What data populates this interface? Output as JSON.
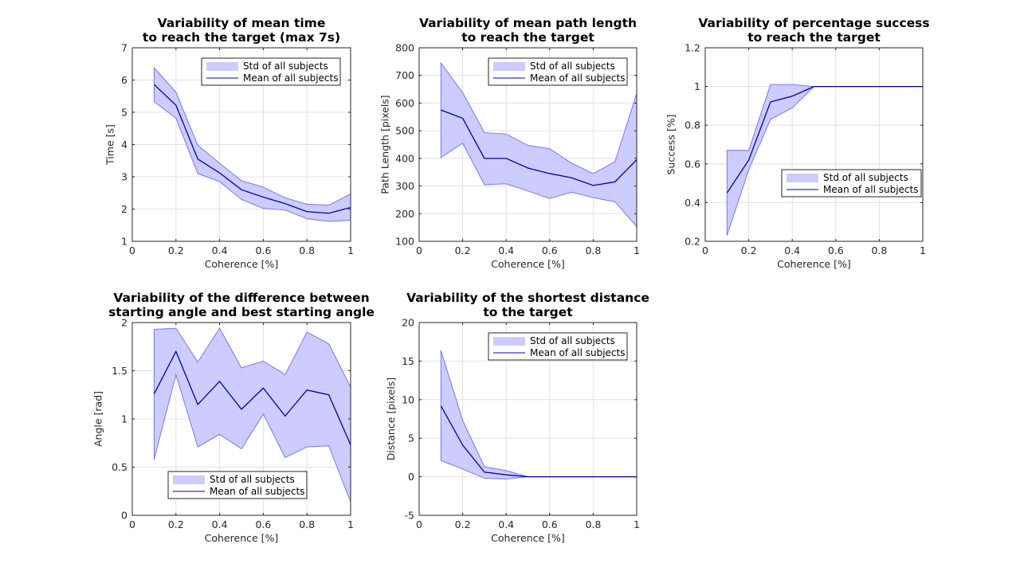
{
  "figure": {
    "background": "#ffffff",
    "band_color": "#ccccff",
    "band_edge_color": "#7777ee",
    "mean_color": "#0000aa",
    "grid_color": "#e0e0e0"
  },
  "chart_data": [
    {
      "type": "area",
      "title": [
        "Variability of mean time",
        "to reach the target (max 7s)"
      ],
      "xlabel": "Coherence [%]",
      "ylabel": "Time [s]",
      "xlim": [
        0,
        1
      ],
      "ylim": [
        1,
        7
      ],
      "xticks": [
        0,
        0.2,
        0.4,
        0.6,
        0.8,
        1
      ],
      "xtick_labels": [
        "0",
        "0.2",
        "0.4",
        "0.6",
        "0.8",
        "1"
      ],
      "yticks": [
        1,
        2,
        3,
        4,
        5,
        6,
        7
      ],
      "ytick_labels": [
        "1",
        "2",
        "3",
        "4",
        "5",
        "6",
        "7"
      ],
      "grid": true,
      "legend": {
        "position": "top-right",
        "entries": [
          "Std of all subjects",
          "Mean of all subjects"
        ]
      },
      "x": [
        0.1,
        0.2,
        0.3,
        0.4,
        0.5,
        0.6,
        0.7,
        0.8,
        0.9,
        1.0
      ],
      "series": [
        {
          "name": "Mean of all subjects",
          "values": [
            5.86,
            5.22,
            3.55,
            3.12,
            2.6,
            2.37,
            2.17,
            1.92,
            1.87,
            2.05
          ]
        },
        {
          "name": "Std of all subjects",
          "upper": [
            6.38,
            5.62,
            3.98,
            3.42,
            2.88,
            2.68,
            2.35,
            2.15,
            2.12,
            2.47
          ],
          "lower": [
            5.33,
            4.82,
            3.1,
            2.85,
            2.3,
            2.02,
            1.97,
            1.7,
            1.62,
            1.65
          ]
        }
      ]
    },
    {
      "type": "area",
      "title": [
        "Variability of mean path length",
        "to reach the target"
      ],
      "xlabel": "Coherence [%]",
      "ylabel": "Path Length [pixels]",
      "xlim": [
        0,
        1
      ],
      "ylim": [
        100,
        800
      ],
      "xticks": [
        0,
        0.2,
        0.4,
        0.6,
        0.8,
        1
      ],
      "xtick_labels": [
        "0",
        "0.2",
        "0.4",
        "0.6",
        "0.8",
        "1"
      ],
      "yticks": [
        100,
        200,
        300,
        400,
        500,
        600,
        700,
        800
      ],
      "ytick_labels": [
        "100",
        "200",
        "300",
        "400",
        "500",
        "600",
        "700",
        "800"
      ],
      "grid": true,
      "legend": {
        "position": "top-right",
        "entries": [
          "Std of all subjects",
          "Mean of all subjects"
        ]
      },
      "x": [
        0.1,
        0.2,
        0.3,
        0.4,
        0.5,
        0.6,
        0.7,
        0.8,
        0.9,
        1.0
      ],
      "series": [
        {
          "name": "Mean of all subjects",
          "values": [
            575,
            545,
            400,
            400,
            365,
            345,
            330,
            302,
            315,
            395
          ]
        },
        {
          "name": "Std of all subjects",
          "upper": [
            745,
            638,
            493,
            488,
            447,
            435,
            383,
            345,
            388,
            635
          ],
          "lower": [
            403,
            455,
            305,
            308,
            282,
            255,
            278,
            258,
            243,
            153
          ]
        }
      ]
    },
    {
      "type": "area",
      "title": [
        "Variability of percentage success",
        "to reach the target"
      ],
      "xlabel": "Coherence [%]",
      "ylabel": "Success [%]",
      "xlim": [
        0,
        1
      ],
      "ylim": [
        0.2,
        1.2
      ],
      "xticks": [
        0,
        0.2,
        0.4,
        0.6,
        0.8,
        1
      ],
      "xtick_labels": [
        "0",
        "0.2",
        "0.4",
        "0.6",
        "0.8",
        "1"
      ],
      "yticks": [
        0.2,
        0.4,
        0.6,
        0.8,
        1,
        1.2
      ],
      "ytick_labels": [
        "0.2",
        "0.4",
        "0.6",
        "0.8",
        "1",
        "1.2"
      ],
      "grid": true,
      "legend": {
        "position": "bottom-right",
        "entries": [
          "Std of all subjects",
          "Mean of all subjects"
        ]
      },
      "x": [
        0.1,
        0.2,
        0.3,
        0.4,
        0.5,
        0.6,
        0.7,
        0.8,
        0.9,
        1.0
      ],
      "series": [
        {
          "name": "Mean of all subjects",
          "values": [
            0.45,
            0.62,
            0.92,
            0.95,
            1.0,
            1.0,
            1.0,
            1.0,
            1.0,
            1.0
          ]
        },
        {
          "name": "Std of all subjects",
          "upper": [
            0.67,
            0.67,
            1.01,
            1.01,
            1.0,
            1.0,
            1.0,
            1.0,
            1.0,
            1.0
          ],
          "lower": [
            0.23,
            0.57,
            0.83,
            0.89,
            1.0,
            1.0,
            1.0,
            1.0,
            1.0,
            1.0
          ]
        }
      ]
    },
    {
      "type": "area",
      "title": [
        "Variability of the difference between",
        "starting angle and best starting angle"
      ],
      "xlabel": "Coherence [%]",
      "ylabel": "Angle [rad]",
      "xlim": [
        0,
        1
      ],
      "ylim": [
        0,
        2
      ],
      "xticks": [
        0,
        0.2,
        0.4,
        0.6,
        0.8,
        1
      ],
      "xtick_labels": [
        "0",
        "0.2",
        "0.4",
        "0.6",
        "0.8",
        "1"
      ],
      "yticks": [
        0,
        0.5,
        1,
        1.5,
        2
      ],
      "ytick_labels": [
        "0",
        "0.5",
        "1",
        "1.5",
        "2"
      ],
      "grid": true,
      "legend": {
        "position": "bottom-center",
        "entries": [
          "Std of all subjects",
          "Mean of all subjects"
        ]
      },
      "x": [
        0.1,
        0.2,
        0.3,
        0.4,
        0.5,
        0.6,
        0.7,
        0.8,
        0.9,
        1.0
      ],
      "series": [
        {
          "name": "Mean of all subjects",
          "values": [
            1.26,
            1.7,
            1.15,
            1.39,
            1.1,
            1.32,
            1.03,
            1.3,
            1.25,
            0.73
          ]
        },
        {
          "name": "Std of all subjects",
          "upper": [
            1.93,
            1.94,
            1.59,
            1.94,
            1.53,
            1.6,
            1.46,
            1.9,
            1.78,
            1.33
          ],
          "lower": [
            0.58,
            1.46,
            0.71,
            0.84,
            0.69,
            1.05,
            0.6,
            0.71,
            0.72,
            0.14
          ]
        }
      ]
    },
    {
      "type": "area",
      "title": [
        "Variability of the shortest distance",
        "to the target"
      ],
      "xlabel": "Coherence [%]",
      "ylabel": "Distance [pixels]",
      "xlim": [
        0,
        1
      ],
      "ylim": [
        -5,
        20
      ],
      "xticks": [
        0,
        0.2,
        0.4,
        0.6,
        0.8,
        1
      ],
      "xtick_labels": [
        "0",
        "0.2",
        "0.4",
        "0.6",
        "0.8",
        "1"
      ],
      "yticks": [
        -5,
        0,
        5,
        10,
        15,
        20
      ],
      "ytick_labels": [
        "-5",
        "0",
        "5",
        "10",
        "15",
        "20"
      ],
      "grid": true,
      "legend": {
        "position": "top-right",
        "entries": [
          "Std of all subjects",
          "Mean of all subjects"
        ]
      },
      "x": [
        0.1,
        0.2,
        0.3,
        0.4,
        0.5,
        0.6,
        0.7,
        0.8,
        0.9,
        1.0
      ],
      "series": [
        {
          "name": "Mean of all subjects",
          "values": [
            9.2,
            4.1,
            0.6,
            0.25,
            0,
            0,
            0,
            0,
            0,
            0
          ]
        },
        {
          "name": "Std of all subjects",
          "upper": [
            16.4,
            7.3,
            1.3,
            0.8,
            0,
            0,
            0,
            0,
            0,
            0
          ],
          "lower": [
            2.1,
            1.0,
            -0.2,
            -0.3,
            0,
            0,
            0,
            0,
            0,
            0
          ]
        }
      ]
    }
  ]
}
